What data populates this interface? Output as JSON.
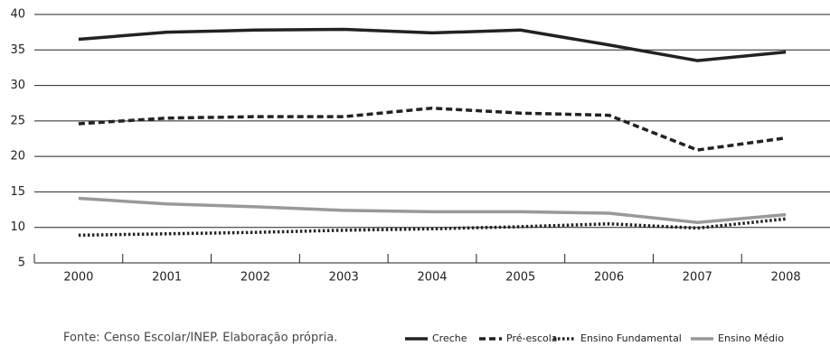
{
  "chart_data": {
    "type": "line",
    "categories": [
      "2000",
      "2001",
      "2002",
      "2003",
      "2004",
      "2005",
      "2006",
      "2007",
      "2008"
    ],
    "series": [
      {
        "name": "Creche",
        "color": "#222222",
        "dash": "solid",
        "values": [
          36.5,
          37.5,
          37.8,
          37.9,
          37.4,
          37.8,
          35.7,
          33.5,
          34.7
        ]
      },
      {
        "name": "Pré-escola",
        "color": "#222222",
        "dash": "dashed",
        "values": [
          24.6,
          25.4,
          25.6,
          25.6,
          26.8,
          26.1,
          25.8,
          20.9,
          22.6
        ]
      },
      {
        "name": "Ensino Fundamental",
        "color": "#222222",
        "dash": "dotted",
        "values": [
          8.9,
          9.1,
          9.3,
          9.6,
          9.8,
          10.1,
          10.5,
          9.9,
          11.2
        ]
      },
      {
        "name": "Ensino Médio",
        "color": "#999999",
        "dash": "solid",
        "values": [
          14.1,
          13.3,
          12.9,
          12.4,
          12.2,
          12.2,
          12.0,
          10.7,
          11.8
        ]
      }
    ],
    "ylim": [
      5,
      40
    ],
    "yticks": [
      5,
      10,
      15,
      20,
      25,
      30,
      35,
      40
    ],
    "grid": true,
    "source": "Fonte: Censo Escolar/INEP. Elaboração própria.",
    "legend": "bottom-right"
  }
}
